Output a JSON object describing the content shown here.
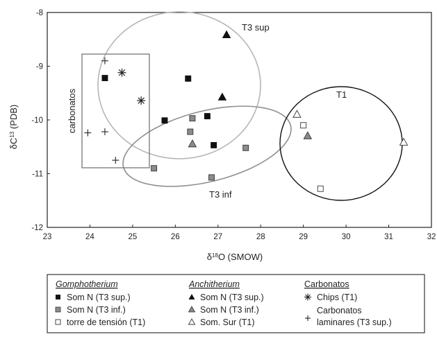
{
  "chart_data": {
    "type": "scatter",
    "xlabel_prefix": "δ",
    "xlabel_sup": "18",
    "xlabel_suffix": "O (SMOW)",
    "ylabel_prefix": "δC",
    "ylabel_sup": "13",
    "ylabel_suffix": " (PDB)",
    "xlim": [
      23,
      32
    ],
    "ylim": [
      -12,
      -8
    ],
    "x_ticks": [
      "23",
      "24",
      "25",
      "26",
      "27",
      "28",
      "29",
      "30",
      "31",
      "32"
    ],
    "y_ticks": [
      "-8",
      "-9",
      "-10",
      "-11",
      "-12"
    ],
    "grid": false,
    "series": [
      {
        "group": "Gomphotherium",
        "name": "Som N (T3 sup.)",
        "marker": "square",
        "fill": "#111111",
        "points": [
          [
            24.35,
            -9.22
          ],
          [
            25.75,
            -10.01
          ],
          [
            26.3,
            -9.23
          ],
          [
            26.75,
            -9.93
          ],
          [
            26.9,
            -10.47
          ]
        ]
      },
      {
        "group": "Gomphotherium",
        "name": "Som N (T3 inf.)",
        "marker": "square",
        "fill": "#8c8c8c",
        "points": [
          [
            25.5,
            -10.9
          ],
          [
            26.35,
            -10.22
          ],
          [
            26.4,
            -9.97
          ],
          [
            26.85,
            -11.07
          ],
          [
            27.65,
            -10.52
          ]
        ]
      },
      {
        "group": "Gomphotherium",
        "name": "torre de tensión (T1)",
        "marker": "square",
        "fill": "#ffffff",
        "points": [
          [
            29.0,
            -10.1
          ],
          [
            29.4,
            -11.28
          ]
        ]
      },
      {
        "group": "Anchitherium",
        "name": "Som N (T3 sup.)",
        "marker": "triangle",
        "fill": "#111111",
        "points": [
          [
            27.2,
            -8.42
          ],
          [
            27.1,
            -9.58
          ]
        ]
      },
      {
        "group": "Anchitherium",
        "name": "Som N (T3 inf.)",
        "marker": "triangle",
        "fill": "#8c8c8c",
        "points": [
          [
            26.4,
            -10.45
          ],
          [
            29.1,
            -10.3
          ]
        ]
      },
      {
        "group": "Anchitherium",
        "name": "Som. Sur (T1)",
        "marker": "triangle",
        "fill": "#ffffff",
        "points": [
          [
            28.85,
            -9.9
          ],
          [
            31.35,
            -10.42
          ]
        ]
      },
      {
        "group": "Carbonatos",
        "name": "Chips (T1)",
        "marker": "asterisk",
        "fill": "#222222",
        "points": [
          [
            24.75,
            -9.12
          ],
          [
            25.2,
            -9.64
          ]
        ]
      },
      {
        "group": "Carbonatos",
        "name": "Carbonatos laminares (T3 sup.)",
        "marker": "plus",
        "fill": "#222222",
        "points": [
          [
            24.35,
            -8.9
          ],
          [
            23.95,
            -10.24
          ],
          [
            24.35,
            -10.22
          ],
          [
            24.6,
            -10.75
          ]
        ]
      }
    ],
    "annotations": {
      "t3sup": "T3 sup",
      "t3inf": "T3 inf",
      "t1": "T1",
      "carbonatos": "carbonatos"
    },
    "legend": {
      "placement": "bottom",
      "group1_title": "Gomphotherium",
      "group2_title": "Anchitherium",
      "group3_title": "Carbonatos",
      "g1_item1": "Som N (T3 sup.)",
      "g1_item2": "Som N (T3 inf.)",
      "g1_item3": "torre de tensión (T1)",
      "g2_item1": "Som N (T3 sup.)",
      "g2_item2": "Som N (T3 inf.)",
      "g2_item3": "Som. Sur (T1)",
      "g3_item1": "Chips  (T1)",
      "g3_item2_line1": "Carbonatos",
      "g3_item2_line2": "laminares (T3 sup.)"
    }
  }
}
